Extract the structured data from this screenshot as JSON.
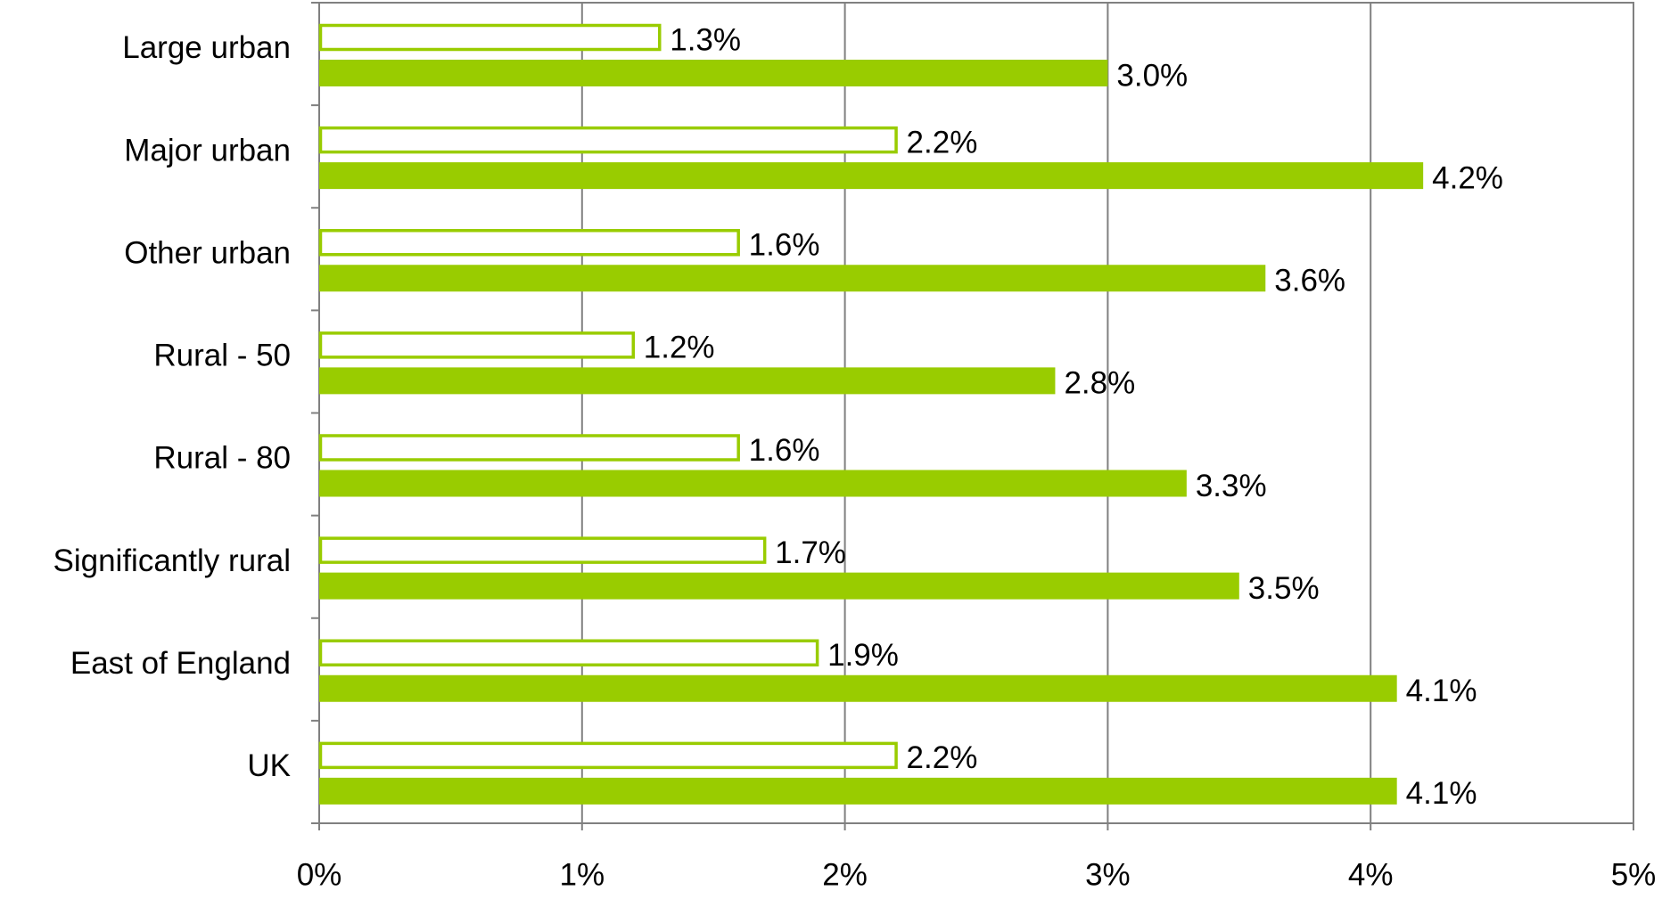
{
  "chart_data": {
    "type": "hbar",
    "categories": [
      "Large urban",
      "Major urban",
      "Other urban",
      "Rural - 50",
      "Rural - 80",
      "Significantly rural",
      "East of England",
      "UK"
    ],
    "series": [
      {
        "color": "#99cc00",
        "fill": "none",
        "values": [
          1.3,
          2.2,
          1.6,
          1.2,
          1.6,
          1.7,
          1.9,
          2.2
        ],
        "value_labels": [
          "1.3%",
          "2.2%",
          "1.6%",
          "1.2%",
          "1.6%",
          "1.7%",
          "1.9%",
          "2.2%"
        ]
      },
      {
        "color": "#99cc00",
        "fill": "solid",
        "values": [
          3.0,
          4.2,
          3.6,
          2.8,
          3.3,
          3.5,
          4.1,
          4.1
        ],
        "value_labels": [
          "3.0%",
          "4.2%",
          "3.6%",
          "2.8%",
          "3.3%",
          "3.5%",
          "4.1%",
          "4.1%"
        ]
      }
    ],
    "xlim": [
      0,
      5
    ],
    "xticks": [
      {
        "value": 0,
        "label": "0%"
      },
      {
        "value": 1,
        "label": "1%"
      },
      {
        "value": 2,
        "label": "2%"
      },
      {
        "value": 3,
        "label": "3%"
      },
      {
        "value": 4,
        "label": "4%"
      },
      {
        "value": 5,
        "label": "5%"
      }
    ],
    "grid": true
  }
}
